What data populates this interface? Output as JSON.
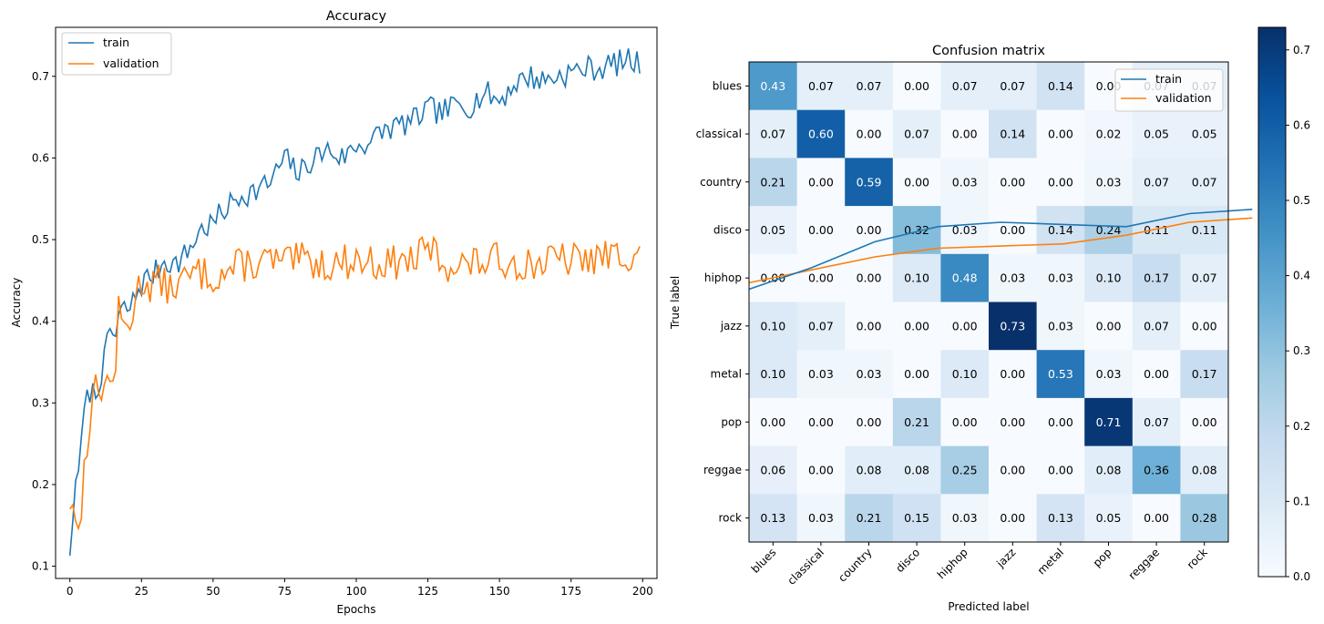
{
  "chart_data": [
    {
      "type": "line",
      "title": "Accuracy",
      "xlabel": "Epochs",
      "ylabel": "Accuracy",
      "xlim": [
        -5,
        205
      ],
      "ylim": [
        0.085,
        0.76
      ],
      "xticks": [
        0,
        25,
        50,
        75,
        100,
        125,
        150,
        175,
        200
      ],
      "yticks": [
        0.1,
        0.2,
        0.3,
        0.4,
        0.5,
        0.6,
        0.7
      ],
      "grid": false,
      "legend_position": "upper-left",
      "colors": {
        "train": "#1f77b4",
        "validation": "#ff7f0e"
      },
      "anchors": {
        "train": [
          [
            0,
            0.113
          ],
          [
            1,
            0.155
          ],
          [
            2,
            0.205
          ],
          [
            4,
            0.245
          ],
          [
            5,
            0.29
          ],
          [
            7,
            0.315
          ],
          [
            9,
            0.31
          ],
          [
            10,
            0.325
          ],
          [
            12,
            0.35
          ],
          [
            14,
            0.39
          ],
          [
            16,
            0.38
          ],
          [
            17,
            0.405
          ],
          [
            19,
            0.415
          ],
          [
            21,
            0.415
          ],
          [
            24,
            0.44
          ],
          [
            26,
            0.45
          ],
          [
            30,
            0.46
          ],
          [
            33,
            0.475
          ],
          [
            37,
            0.47
          ],
          [
            40,
            0.48
          ],
          [
            43,
            0.495
          ],
          [
            45,
            0.51
          ],
          [
            50,
            0.52
          ],
          [
            55,
            0.54
          ],
          [
            60,
            0.555
          ],
          [
            65,
            0.56
          ],
          [
            70,
            0.57
          ],
          [
            75,
            0.6
          ],
          [
            80,
            0.58
          ],
          [
            85,
            0.6
          ],
          [
            90,
            0.61
          ],
          [
            95,
            0.6
          ],
          [
            100,
            0.615
          ],
          [
            105,
            0.62
          ],
          [
            110,
            0.635
          ],
          [
            115,
            0.64
          ],
          [
            120,
            0.645
          ],
          [
            125,
            0.66
          ],
          [
            130,
            0.655
          ],
          [
            135,
            0.665
          ],
          [
            140,
            0.665
          ],
          [
            145,
            0.68
          ],
          [
            150,
            0.67
          ],
          [
            155,
            0.69
          ],
          [
            160,
            0.7
          ],
          [
            165,
            0.695
          ],
          [
            170,
            0.7
          ],
          [
            175,
            0.705
          ],
          [
            180,
            0.71
          ],
          [
            185,
            0.71
          ],
          [
            190,
            0.715
          ],
          [
            195,
            0.72
          ],
          [
            199,
            0.715
          ]
        ],
        "validation": [
          [
            0,
            0.17
          ],
          [
            1,
            0.175
          ],
          [
            2,
            0.155
          ],
          [
            4,
            0.16
          ],
          [
            5,
            0.22
          ],
          [
            6,
            0.25
          ],
          [
            8,
            0.32
          ],
          [
            10,
            0.31
          ],
          [
            12,
            0.33
          ],
          [
            14,
            0.32
          ],
          [
            16,
            0.35
          ],
          [
            17,
            0.41
          ],
          [
            19,
            0.39
          ],
          [
            21,
            0.4
          ],
          [
            23,
            0.43
          ],
          [
            25,
            0.45
          ],
          [
            28,
            0.445
          ],
          [
            30,
            0.45
          ],
          [
            35,
            0.44
          ],
          [
            40,
            0.45
          ],
          [
            45,
            0.46
          ],
          [
            50,
            0.455
          ],
          [
            55,
            0.46
          ],
          [
            60,
            0.47
          ],
          [
            65,
            0.47
          ],
          [
            70,
            0.475
          ],
          [
            75,
            0.47
          ],
          [
            80,
            0.475
          ],
          [
            90,
            0.47
          ],
          [
            100,
            0.475
          ],
          [
            110,
            0.47
          ],
          [
            120,
            0.475
          ],
          [
            126,
            0.49
          ],
          [
            130,
            0.47
          ],
          [
            140,
            0.47
          ],
          [
            150,
            0.475
          ],
          [
            160,
            0.47
          ],
          [
            170,
            0.475
          ],
          [
            180,
            0.475
          ],
          [
            190,
            0.48
          ],
          [
            199,
            0.485
          ]
        ]
      },
      "series": [
        {
          "name": "train"
        },
        {
          "name": "validation"
        }
      ]
    },
    {
      "type": "heatmap",
      "title": "Confusion matrix",
      "xlabel": "Predicted label",
      "ylabel": "True label",
      "categories": [
        "blues",
        "classical",
        "country",
        "disco",
        "hiphop",
        "jazz",
        "metal",
        "pop",
        "reggae",
        "rock"
      ],
      "values": [
        [
          0.43,
          0.07,
          0.07,
          0.0,
          0.07,
          0.07,
          0.14,
          0.0,
          0.07,
          0.07
        ],
        [
          0.07,
          0.6,
          0.0,
          0.07,
          0.0,
          0.14,
          0.0,
          0.02,
          0.05,
          0.05
        ],
        [
          0.21,
          0.0,
          0.59,
          0.0,
          0.03,
          0.0,
          0.0,
          0.03,
          0.07,
          0.07
        ],
        [
          0.05,
          0.0,
          0.0,
          0.32,
          0.03,
          0.0,
          0.14,
          0.24,
          0.11,
          0.11
        ],
        [
          0.0,
          0.0,
          0.0,
          0.1,
          0.48,
          0.03,
          0.03,
          0.1,
          0.17,
          0.07
        ],
        [
          0.1,
          0.07,
          0.0,
          0.0,
          0.0,
          0.73,
          0.03,
          0.0,
          0.07,
          0.0
        ],
        [
          0.1,
          0.03,
          0.03,
          0.0,
          0.1,
          0.0,
          0.53,
          0.03,
          0.0,
          0.17
        ],
        [
          0.0,
          0.0,
          0.0,
          0.21,
          0.0,
          0.0,
          0.0,
          0.71,
          0.07,
          0.0
        ],
        [
          0.06,
          0.0,
          0.08,
          0.08,
          0.25,
          0.0,
          0.0,
          0.08,
          0.36,
          0.08
        ],
        [
          0.13,
          0.03,
          0.21,
          0.15,
          0.03,
          0.0,
          0.13,
          0.05,
          0.0,
          0.28
        ]
      ],
      "value_text_threshold": 0.365,
      "colormap": "Blues",
      "colorbar": {
        "min": 0.0,
        "max": 0.73,
        "ticks": [
          0.0,
          0.1,
          0.2,
          0.3,
          0.4,
          0.5,
          0.6,
          0.7
        ]
      },
      "overlay_legend": {
        "position": "upper-right",
        "entries": [
          {
            "name": "train",
            "color": "#1f77b4"
          },
          {
            "name": "validation",
            "color": "#ff7f0e"
          }
        ]
      },
      "overlay_lines": {
        "train": [
          0.57,
          0.67,
          0.79,
          0.86,
          0.88,
          0.87,
          0.86,
          0.92,
          0.94
        ],
        "validation": [
          0.6,
          0.66,
          0.72,
          0.76,
          0.77,
          0.78,
          0.82,
          0.88,
          0.9
        ],
        "x_start": -0.5,
        "x_end": 10.0
      }
    }
  ]
}
